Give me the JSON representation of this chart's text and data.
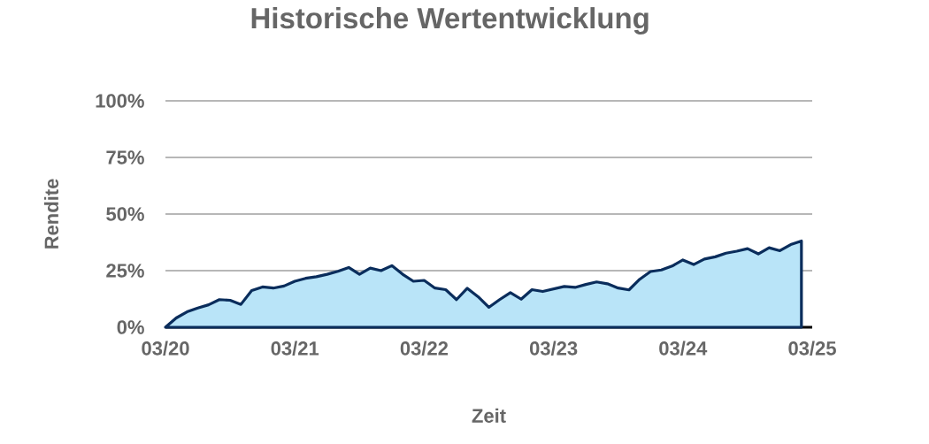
{
  "chart_data": {
    "type": "area",
    "title": "Historische Wertentwicklung",
    "xlabel": "Zeit",
    "ylabel": "Rendite",
    "x": [
      "2020-03",
      "2020-04",
      "2020-05",
      "2020-06",
      "2020-07",
      "2020-08",
      "2020-09",
      "2020-10",
      "2020-11",
      "2020-12",
      "2021-01",
      "2021-02",
      "2021-03",
      "2021-04",
      "2021-05",
      "2021-06",
      "2021-07",
      "2021-08",
      "2021-09",
      "2021-10",
      "2021-11",
      "2021-12",
      "2022-01",
      "2022-02",
      "2022-03",
      "2022-04",
      "2022-05",
      "2022-06",
      "2022-07",
      "2022-08",
      "2022-09",
      "2022-10",
      "2022-11",
      "2022-12",
      "2023-01",
      "2023-02",
      "2023-03",
      "2023-04",
      "2023-05",
      "2023-06",
      "2023-07",
      "2023-08",
      "2023-09",
      "2023-10",
      "2023-11",
      "2023-12",
      "2024-01",
      "2024-02",
      "2024-03",
      "2024-04",
      "2024-05",
      "2024-06",
      "2024-07",
      "2024-08",
      "2024-09",
      "2024-10",
      "2024-11",
      "2024-12",
      "2025-01",
      "2025-02"
    ],
    "series": [
      {
        "color": "#b9e4f8",
        "values": [
          0,
          4.1,
          6.8,
          8.5,
          9.9,
          12.2,
          11.9,
          10.1,
          16.2,
          17.8,
          17.3,
          18.2,
          20.3,
          21.6,
          22.3,
          23.4,
          24.7,
          26.4,
          23.4,
          26.1,
          25.0,
          27.2,
          23.4,
          20.3,
          20.7,
          17.3,
          16.6,
          12.2,
          17.2,
          13.5,
          8.8,
          12.2,
          15.3,
          12.4,
          16.6,
          15.8,
          16.9,
          18.0,
          17.6,
          18.9,
          20.0,
          19.2,
          17.3,
          16.5,
          21.2,
          24.6,
          25.3,
          27.0,
          29.7,
          27.7,
          30.1,
          31.1,
          32.7,
          33.6,
          34.7,
          32.4,
          35.1,
          33.8,
          36.5,
          38.1
        ]
      }
    ],
    "xlim": [
      "2020-03",
      "2025-03"
    ],
    "xticks": [
      {
        "value": "2020-03",
        "label": "03/20"
      },
      {
        "value": "2021-03",
        "label": "03/21"
      },
      {
        "value": "2022-03",
        "label": "03/22"
      },
      {
        "value": "2023-03",
        "label": "03/23"
      },
      {
        "value": "2024-03",
        "label": "03/24"
      },
      {
        "value": "2025-03",
        "label": "03/25"
      }
    ],
    "ylim": [
      0,
      100
    ],
    "yticks": [
      {
        "value": 0,
        "label": "0%"
      },
      {
        "value": 25,
        "label": "25%"
      },
      {
        "value": 50,
        "label": "50%"
      },
      {
        "value": 75,
        "label": "75%"
      },
      {
        "value": 100,
        "label": "100%"
      }
    ],
    "grid": "y"
  }
}
